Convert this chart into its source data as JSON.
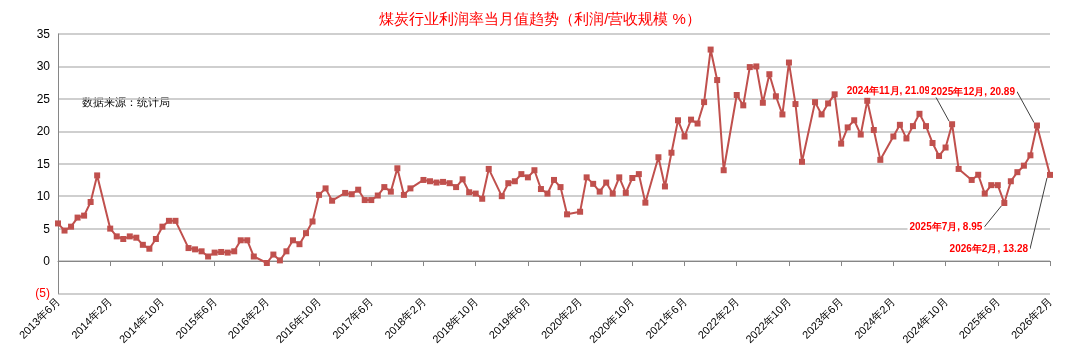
{
  "chart_data": {
    "type": "line",
    "title": "煤炭行业利润率当月值趋势（利润/营收规模 %）",
    "annotations": [
      "数据来源：统计局"
    ],
    "categories": [
      "2013年6月",
      null,
      null,
      null,
      null,
      null,
      null,
      null,
      "2014年2月",
      null,
      null,
      null,
      null,
      null,
      null,
      null,
      "2014年10月",
      null,
      null,
      null,
      null,
      null,
      null,
      null,
      "2015年6月",
      null,
      null,
      null,
      null,
      null,
      null,
      null,
      "2016年2月",
      null,
      null,
      null,
      null,
      null,
      null,
      null,
      "2016年10月",
      null,
      null,
      null,
      null,
      null,
      null,
      null,
      "2017年6月",
      null,
      null,
      null,
      null,
      null,
      null,
      null,
      "2018年2月",
      null,
      null,
      null,
      null,
      null,
      null,
      null,
      "2018年10月",
      null,
      null,
      null,
      null,
      null,
      null,
      null,
      "2019年6月",
      null,
      null,
      null,
      null,
      null,
      null,
      null,
      "2020年2月",
      null,
      null,
      null,
      null,
      null,
      null,
      null,
      "2020年10月",
      null,
      null,
      null,
      null,
      null,
      null,
      null,
      "2021年6月",
      null,
      null,
      null,
      null,
      null,
      null,
      null,
      "2022年2月",
      null,
      null,
      null,
      null,
      null,
      null,
      null,
      "2022年10月",
      null,
      null,
      null,
      null,
      null,
      null,
      null,
      "2023年6月",
      null,
      null,
      null,
      null,
      null,
      null,
      null,
      "2024年2月",
      null,
      null,
      null,
      null,
      null,
      null,
      null,
      "2024年10月",
      null,
      null,
      null,
      null,
      null,
      null,
      null,
      "2025年6月",
      null,
      null,
      null,
      null,
      null,
      null,
      null,
      "2026年2月"
    ],
    "series": [
      {
        "color": "#c0504d",
        "values": [
          5.8,
          4.7,
          5.3,
          6.7,
          7.0,
          9.1,
          13.2,
          null,
          5.0,
          3.8,
          3.4,
          3.8,
          3.6,
          2.5,
          1.9,
          3.4,
          5.3,
          6.2,
          6.2,
          null,
          2.0,
          1.8,
          1.5,
          0.7,
          1.3,
          1.4,
          1.3,
          1.5,
          3.2,
          3.2,
          0.7,
          null,
          -0.3,
          1.0,
          0.1,
          1.5,
          3.2,
          2.6,
          4.3,
          6.1,
          10.2,
          11.2,
          9.3,
          null,
          10.5,
          10.3,
          11.0,
          9.4,
          9.4,
          10.1,
          11.4,
          10.7,
          14.3,
          10.2,
          11.2,
          null,
          12.5,
          12.3,
          12.1,
          12.2,
          12.0,
          11.4,
          12.6,
          10.6,
          10.4,
          9.6,
          14.2,
          null,
          10.0,
          12.0,
          12.3,
          13.4,
          12.9,
          14.0,
          11.1,
          10.4,
          12.5,
          11.4,
          7.2,
          null,
          7.6,
          12.9,
          11.9,
          10.7,
          12.1,
          10.4,
          12.9,
          10.5,
          12.8,
          13.4,
          9.0,
          null,
          16.0,
          11.5,
          16.7,
          21.7,
          19.2,
          21.8,
          21.2,
          24.5,
          32.6,
          27.9,
          14.0,
          null,
          25.6,
          24.0,
          29.9,
          30.0,
          24.4,
          28.8,
          25.4,
          22.6,
          30.6,
          24.2,
          15.3,
          null,
          24.5,
          22.6,
          24.3,
          25.7,
          18.1,
          20.6,
          21.7,
          19.5,
          24.7,
          20.2,
          15.6,
          null,
          19.2,
          21.0,
          18.9,
          20.8,
          22.7,
          20.8,
          18.2,
          16.2,
          17.5,
          21.09,
          14.2,
          null,
          12.5,
          13.3,
          10.4,
          11.7,
          11.7,
          8.95,
          12.3,
          13.7,
          14.7,
          16.3,
          20.89,
          null,
          13.28
        ],
        "value_labels": [
          null,
          null,
          null,
          null,
          null,
          null,
          null,
          null,
          null,
          null,
          null,
          null,
          null,
          null,
          null,
          null,
          null,
          null,
          null,
          null,
          null,
          null,
          null,
          null,
          null,
          null,
          null,
          null,
          null,
          null,
          null,
          null,
          null,
          null,
          null,
          null,
          null,
          null,
          null,
          null,
          null,
          null,
          null,
          null,
          null,
          null,
          null,
          null,
          null,
          null,
          null,
          null,
          null,
          null,
          null,
          null,
          null,
          null,
          null,
          null,
          null,
          null,
          null,
          null,
          null,
          null,
          null,
          null,
          null,
          null,
          null,
          null,
          null,
          null,
          null,
          null,
          null,
          null,
          null,
          null,
          null,
          null,
          null,
          null,
          null,
          null,
          null,
          null,
          null,
          null,
          null,
          null,
          null,
          null,
          null,
          null,
          null,
          null,
          null,
          null,
          null,
          null,
          null,
          null,
          null,
          null,
          null,
          null,
          null,
          null,
          null,
          null,
          null,
          null,
          null,
          null,
          null,
          null,
          null,
          null,
          null,
          null,
          null,
          null,
          null,
          null,
          null,
          null,
          null,
          null,
          null,
          null,
          null,
          null,
          null,
          null,
          null,
          "2024年11月, 21.09",
          null,
          null,
          null,
          null,
          null,
          null,
          null,
          "2025年7月, 8.95",
          null,
          null,
          null,
          null,
          "2025年12月, 20.89",
          null,
          "2026年2月, 13.28"
        ]
      }
    ],
    "ylim": [
      -5,
      35
    ],
    "yticks": [
      {
        "value": -5,
        "label": "(5)"
      },
      0,
      5,
      10,
      15,
      20,
      25,
      30,
      35
    ],
    "grid": "y",
    "marker": "square",
    "line_style": "solid"
  }
}
